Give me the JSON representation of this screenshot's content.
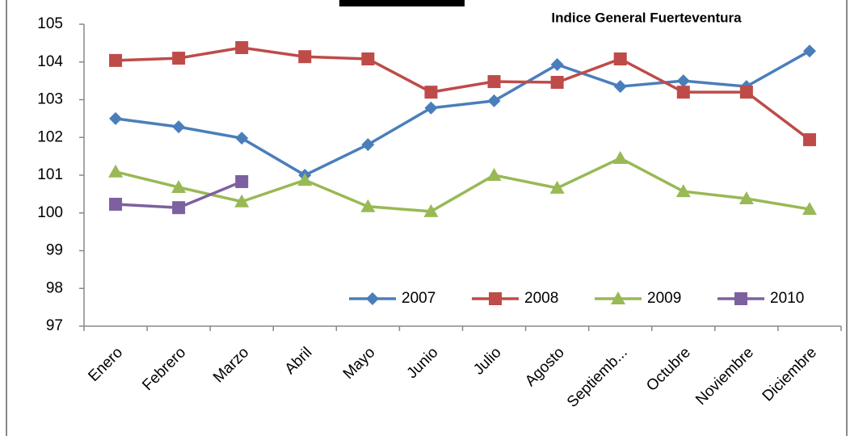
{
  "chart_data": {
    "type": "line",
    "title": "Indice General Fuerteventura",
    "categories": [
      "Enero",
      "Febrero",
      "Marzo",
      "Abril",
      "Mayo",
      "Junio",
      "Julio",
      "Agosto",
      "Septiemb...",
      "Octubre",
      "Noviembre",
      "Diciembre"
    ],
    "series": [
      {
        "name": "2007",
        "color": "#4a7ebb",
        "marker": "diamond",
        "values": [
          102.5,
          102.28,
          101.98,
          101.0,
          101.81,
          102.78,
          102.97,
          103.93,
          103.35,
          103.5,
          103.35,
          104.29
        ]
      },
      {
        "name": "2008",
        "color": "#be4b48",
        "marker": "square",
        "values": [
          104.04,
          104.1,
          104.38,
          104.14,
          104.08,
          103.2,
          103.48,
          103.46,
          104.08,
          103.2,
          103.2,
          101.94
        ]
      },
      {
        "name": "2009",
        "color": "#98b954",
        "marker": "triangle",
        "values": [
          101.09,
          100.68,
          100.3,
          100.87,
          100.17,
          100.04,
          101.0,
          100.66,
          101.45,
          100.57,
          100.38,
          100.1
        ]
      },
      {
        "name": "2010",
        "color": "#7d60a0",
        "marker": "square",
        "values": [
          100.23,
          100.14,
          100.83,
          null,
          null,
          null,
          null,
          null,
          null,
          null,
          null,
          null
        ]
      }
    ],
    "ylim": [
      97,
      105
    ],
    "yticks": [
      97,
      98,
      99,
      100,
      101,
      102,
      103,
      104,
      105
    ],
    "grid": false,
    "legend": "bottom"
  }
}
